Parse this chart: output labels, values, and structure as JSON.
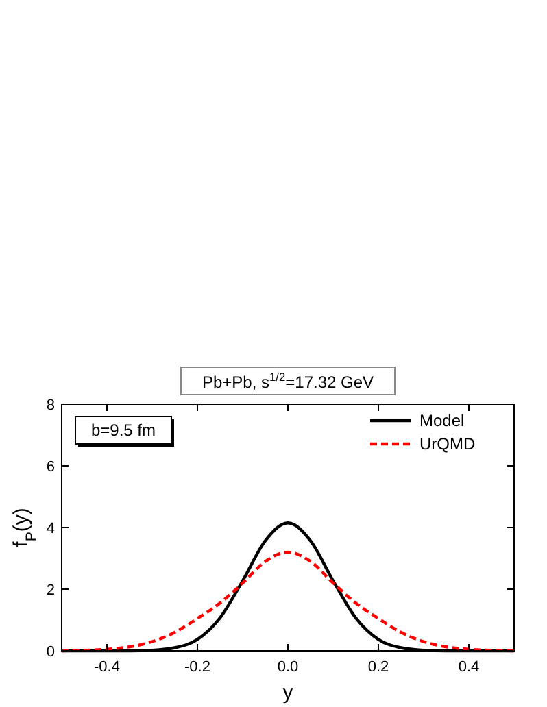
{
  "chart_data": {
    "type": "line",
    "title": "Pb+Pb, s$^{1/2}$=17.32 GeV",
    "xlabel": "y",
    "ylabel": "f$_{P}$(y)",
    "annotations": [
      "b=9.5 fm"
    ],
    "x": [
      -0.5,
      -0.45,
      -0.4,
      -0.35,
      -0.3,
      -0.25,
      -0.2,
      -0.15,
      -0.1,
      -0.05,
      0,
      0.05,
      0.1,
      0.15,
      0.2,
      0.25,
      0.3,
      0.35,
      0.4,
      0.45,
      0.5
    ],
    "series": [
      {
        "name": "Model",
        "color": "#000000",
        "line_style": "solid",
        "values": [
          0,
          0,
          0,
          0,
          0.02,
          0.1,
          0.37,
          1.07,
          2.27,
          3.57,
          4.15,
          3.57,
          2.27,
          1.07,
          0.37,
          0.1,
          0.02,
          0,
          0,
          0,
          0
        ]
      },
      {
        "name": "UrQMD",
        "color": "#ff0000",
        "line_style": "dashed",
        "values": [
          0,
          0.02,
          0.05,
          0.13,
          0.3,
          0.6,
          1.05,
          1.55,
          2.2,
          2.9,
          3.2,
          2.9,
          2.2,
          1.55,
          1.05,
          0.6,
          0.3,
          0.13,
          0.05,
          0.02,
          0
        ]
      }
    ],
    "xlim": [
      -0.5,
      0.5
    ],
    "xticks": [
      {
        "value": -0.4,
        "label": "-0.4"
      },
      {
        "value": -0.2,
        "label": "-0.2"
      },
      {
        "value": 0,
        "label": "0.0"
      },
      {
        "value": 0.2,
        "label": "0.2"
      },
      {
        "value": 0.4,
        "label": "0.4"
      }
    ],
    "ylim": [
      0,
      8
    ],
    "yticks": [
      0,
      2,
      4,
      6,
      8
    ],
    "grid": false,
    "legend": "top right"
  }
}
